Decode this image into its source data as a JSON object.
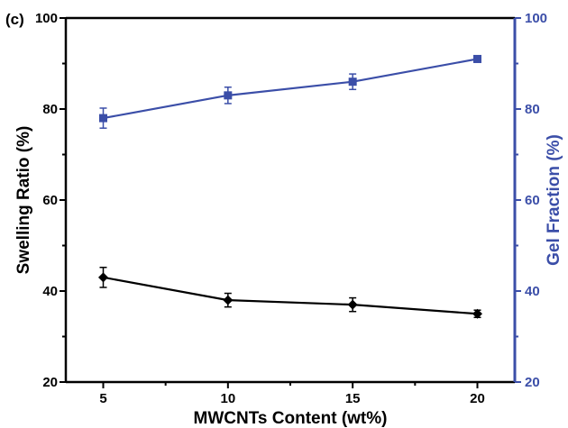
{
  "panel_label": "(c)",
  "colors": {
    "left_series": "#000000",
    "right_series": "#3b4ea8",
    "axis_left": "#000000",
    "axis_right": "#3b4ea8"
  },
  "chart_data": {
    "type": "line",
    "xlabel": "MWCNTs Content (wt%)",
    "ylabel_left": "Swelling Ratio (%)",
    "ylabel_right": "Gel Fraction (%)",
    "x": [
      5,
      10,
      15,
      20
    ],
    "xlim": [
      3.5,
      21.5
    ],
    "x_ticks": [
      5,
      10,
      15,
      20
    ],
    "ylim_left": [
      20,
      100
    ],
    "ylim_right": [
      20,
      100
    ],
    "y_ticks": [
      20,
      40,
      60,
      80,
      100
    ],
    "grid": false,
    "legend": "none",
    "series": [
      {
        "axis": "left",
        "marker": "diamond",
        "values": [
          43,
          38,
          37,
          35
        ],
        "errors": [
          2.2,
          1.5,
          1.5,
          0.8
        ]
      },
      {
        "axis": "right",
        "marker": "square",
        "values": [
          78,
          83,
          86,
          91
        ],
        "errors": [
          2.2,
          1.8,
          1.7,
          0.7
        ]
      }
    ]
  }
}
